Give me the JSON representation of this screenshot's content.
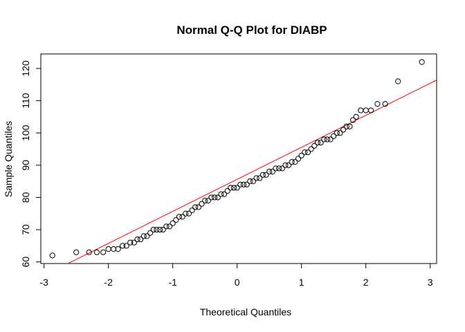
{
  "chart_data": {
    "type": "scatter",
    "title": "Normal Q-Q Plot for DIABP",
    "xlabel": "Theoretical Quantiles",
    "ylabel": "Sample Quantiles",
    "xlim": [
      -3.05,
      3.1
    ],
    "ylim": [
      59.5,
      124.5
    ],
    "x_ticks": [
      -3,
      -2,
      -1,
      0,
      1,
      2,
      3
    ],
    "y_ticks": [
      60,
      70,
      80,
      90,
      100,
      110,
      120
    ],
    "grid": false,
    "legend": "none",
    "point_color": "#000000",
    "line_color": "#ff0000",
    "reference_line": {
      "x": [
        -3.05,
        3.1
      ],
      "y": [
        55.3,
        116.4
      ]
    },
    "points": {
      "x": [
        -2.87,
        -2.5,
        -2.3,
        -2.18,
        -2.08,
        -2.0,
        -1.92,
        -1.85,
        -1.78,
        -1.72,
        -1.66,
        -1.6,
        -1.55,
        -1.5,
        -1.45,
        -1.4,
        -1.35,
        -1.3,
        -1.25,
        -1.2,
        -1.15,
        -1.1,
        -1.05,
        -1.0,
        -0.95,
        -0.9,
        -0.85,
        -0.8,
        -0.75,
        -0.7,
        -0.65,
        -0.6,
        -0.55,
        -0.5,
        -0.45,
        -0.4,
        -0.35,
        -0.3,
        -0.25,
        -0.2,
        -0.15,
        -0.1,
        -0.05,
        0.0,
        0.05,
        0.1,
        0.15,
        0.2,
        0.25,
        0.3,
        0.35,
        0.4,
        0.45,
        0.5,
        0.55,
        0.6,
        0.65,
        0.7,
        0.75,
        0.8,
        0.85,
        0.9,
        0.95,
        1.0,
        1.05,
        1.1,
        1.15,
        1.2,
        1.25,
        1.3,
        1.35,
        1.4,
        1.45,
        1.5,
        1.55,
        1.6,
        1.65,
        1.7,
        1.75,
        1.8,
        1.85,
        1.92,
        2.0,
        2.08,
        2.18,
        2.3,
        2.5,
        2.87
      ],
      "y": [
        62,
        63,
        63,
        63,
        63,
        64,
        64,
        64,
        65,
        65,
        66,
        66,
        67,
        67,
        68,
        68,
        69,
        70,
        70,
        70,
        70,
        71,
        71,
        72,
        73,
        74,
        74,
        75,
        75,
        76,
        77,
        77,
        78,
        79,
        79,
        80,
        80,
        80,
        81,
        81,
        82,
        83,
        83,
        83,
        84,
        84,
        84,
        85,
        85,
        86,
        86,
        87,
        87,
        88,
        88,
        89,
        89,
        89,
        90,
        90,
        91,
        91,
        92,
        93,
        94,
        94,
        95,
        96,
        97,
        97,
        98,
        98,
        98,
        99,
        100,
        100,
        101,
        102,
        102,
        104,
        105,
        107,
        107,
        107,
        109,
        109,
        116,
        122
      ]
    }
  }
}
